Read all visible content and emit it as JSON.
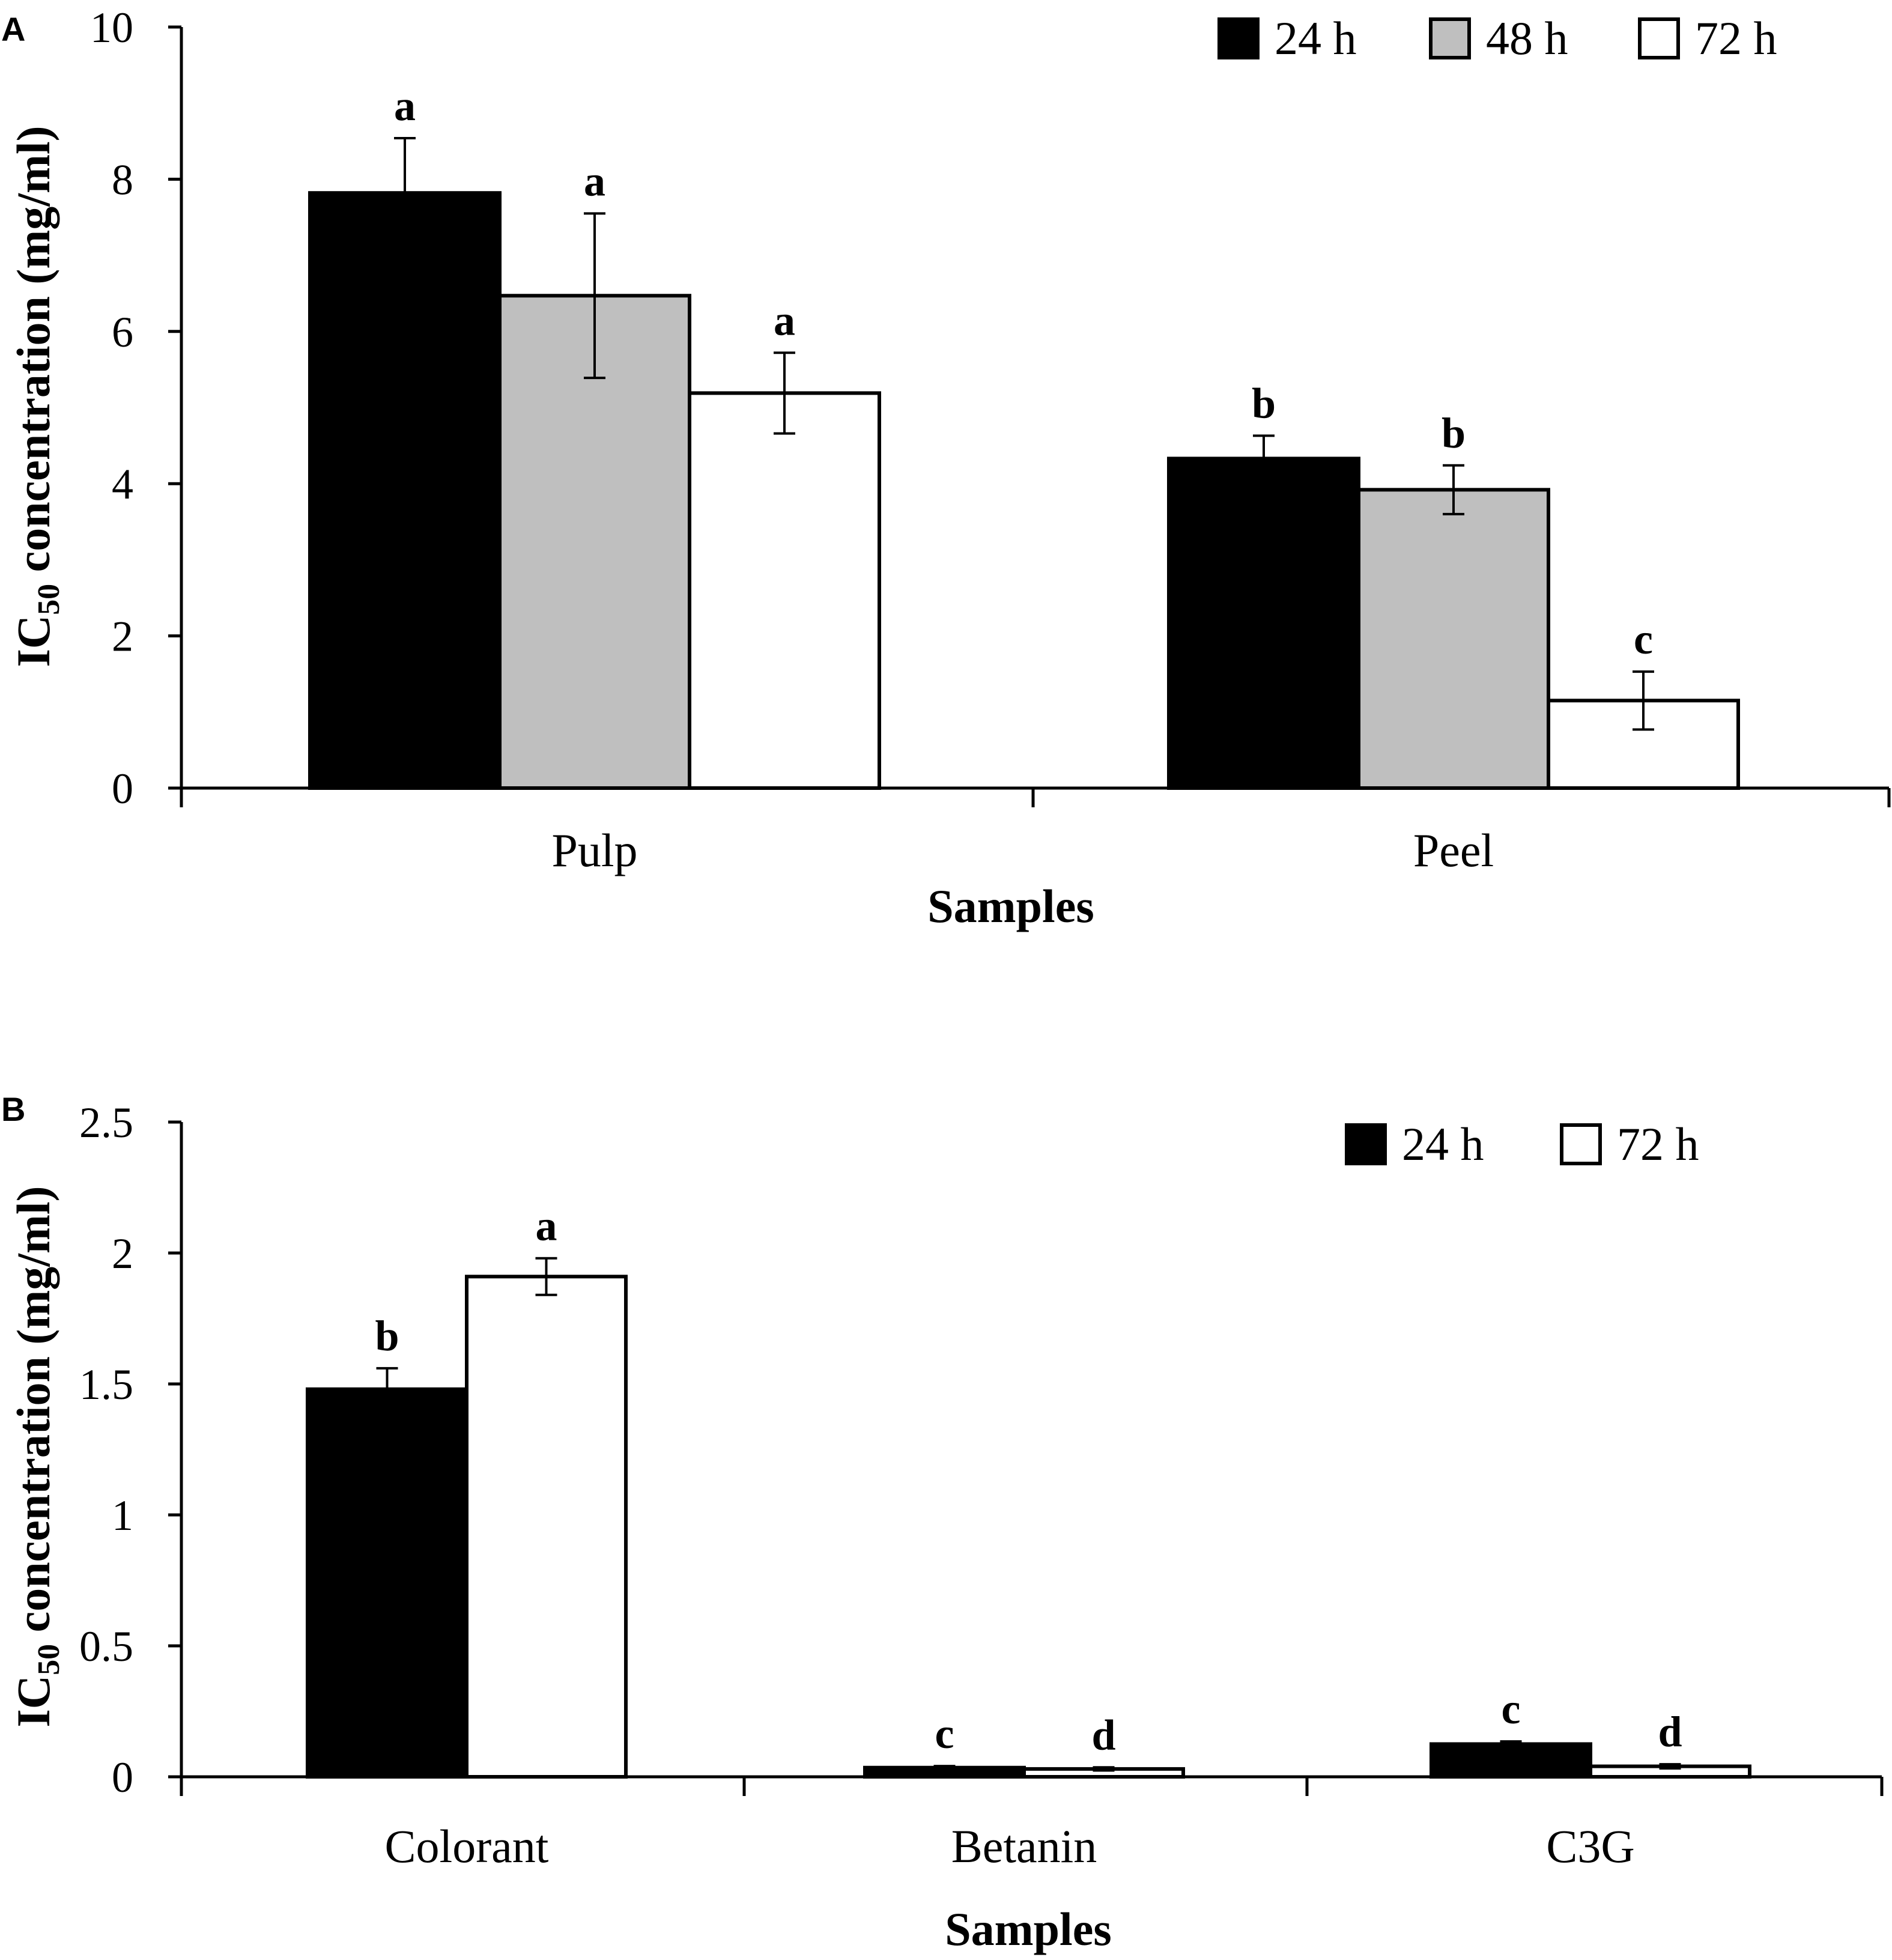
{
  "figure": {
    "panels": [
      "A",
      "B"
    ]
  },
  "chart_data": [
    {
      "panel": "A",
      "type": "bar",
      "title": "",
      "xlabel": "Samples",
      "ylabel": {
        "prefix": "IC",
        "subscript": "50",
        "suffix": " concentration (mg/ml)"
      },
      "categories": [
        "Pulp",
        "Peel"
      ],
      "ylim": [
        0,
        10
      ],
      "yticks": [
        0,
        2,
        4,
        6,
        8,
        10
      ],
      "ytick_labels": [
        "0",
        "2",
        "4",
        "6",
        "8",
        "10"
      ],
      "grid": false,
      "legend_position": "top-right",
      "series": [
        {
          "name": "24 h",
          "color": "#000000",
          "values": [
            7.82,
            4.33
          ],
          "errors": [
            0.72,
            0.3
          ],
          "letters": [
            "a",
            "b"
          ]
        },
        {
          "name": "48 h",
          "color": "#bfbfbf",
          "values": [
            6.47,
            3.92
          ],
          "errors": [
            1.08,
            0.32
          ],
          "letters": [
            "a",
            "b"
          ]
        },
        {
          "name": "72 h",
          "color": "#ffffff",
          "values": [
            5.19,
            1.15
          ],
          "errors": [
            0.53,
            0.38
          ],
          "letters": [
            "a",
            "c"
          ]
        }
      ]
    },
    {
      "panel": "B",
      "type": "bar",
      "title": "",
      "xlabel": "Samples",
      "ylabel": {
        "prefix": "IC",
        "subscript": "50",
        "suffix": " concentration (mg/ml)"
      },
      "categories": [
        "Colorant",
        "Betanin",
        "C3G"
      ],
      "ylim": [
        0,
        2.5
      ],
      "yticks": [
        0,
        0.5,
        1,
        1.5,
        2,
        2.5
      ],
      "ytick_labels": [
        "0",
        "0.5",
        "1",
        "1.5",
        "2",
        "2.5"
      ],
      "grid": false,
      "legend_position": "top-right",
      "series": [
        {
          "name": "24 h",
          "color": "#000000",
          "values": [
            1.48,
            0.035,
            0.125
          ],
          "errors": [
            0.08,
            0.006,
            0.01
          ],
          "letters": [
            "b",
            "c",
            "c"
          ]
        },
        {
          "name": "72 h",
          "color": "#ffffff",
          "values": [
            1.91,
            0.03,
            0.04
          ],
          "errors": [
            0.07,
            0.006,
            0.008
          ],
          "letters": [
            "a",
            "d",
            "d"
          ]
        }
      ]
    }
  ]
}
